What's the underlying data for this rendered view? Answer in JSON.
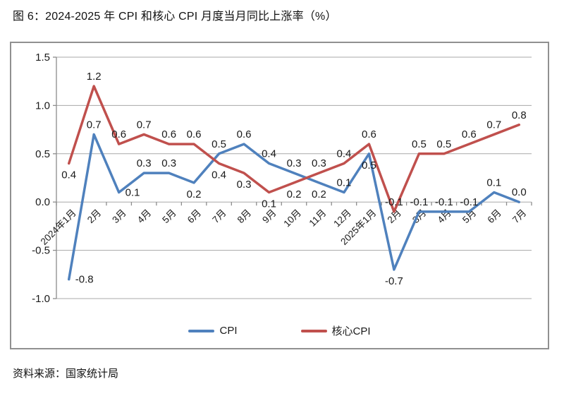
{
  "title": "图 6：2024-2025 年 CPI 和核心 CPI 月度当月同比上涨率（%）",
  "source": "资料来源：国家统计局",
  "colors": {
    "cpi_line": "#4F81BD",
    "core_cpi_line": "#C0504D",
    "gridline": "#A8A8A8",
    "axis": "#8C8C8C",
    "text": "#1A1A1A"
  },
  "chart_data": {
    "type": "line",
    "title": "图 6：2024-2025 年 CPI 和核心 CPI 月度当月同比上涨率（%）",
    "xlabel": "",
    "ylabel": "",
    "ylim": [
      -1.0,
      1.5
    ],
    "ytick_step": 0.5,
    "ytick_labels": [
      "1.5",
      "1.0",
      "0.5",
      "0.0",
      "-0.5",
      "-1.0"
    ],
    "grid": true,
    "data_labels": true,
    "legend_position": "bottom",
    "categories": [
      "2024年1月",
      "2月",
      "3月",
      "4月",
      "5月",
      "6月",
      "7月",
      "8月",
      "9月",
      "10月",
      "11月",
      "12月",
      "2025年1月",
      "2月",
      "3月",
      "4月",
      "5月",
      "6月",
      "7月"
    ],
    "series": [
      {
        "name": "CPI",
        "color": "#4F81BD",
        "values": [
          -0.8,
          0.7,
          0.1,
          0.3,
          0.3,
          0.2,
          0.5,
          0.6,
          0.4,
          0.3,
          0.2,
          0.1,
          0.5,
          -0.7,
          -0.1,
          -0.1,
          -0.1,
          0.1,
          0.0
        ],
        "label_pos": [
          "right",
          "above",
          "right",
          "above",
          "above",
          "below",
          "above",
          "above",
          "above",
          "above",
          "below",
          "above",
          "below",
          "below",
          "above",
          "above",
          "above",
          "above",
          "above"
        ]
      },
      {
        "name": "核心CPI",
        "color": "#C0504D",
        "values": [
          0.4,
          1.2,
          0.6,
          0.7,
          0.6,
          0.6,
          0.4,
          0.3,
          0.1,
          0.2,
          0.3,
          0.4,
          0.6,
          -0.1,
          0.5,
          0.5,
          0.6,
          0.7,
          0.8
        ],
        "label_pos": [
          "below",
          "above",
          "above",
          "above",
          "above",
          "above",
          "below",
          "below",
          "below",
          "below",
          "above",
          "above",
          "above",
          "above",
          "above",
          "above",
          "above",
          "above",
          "above"
        ]
      }
    ]
  }
}
